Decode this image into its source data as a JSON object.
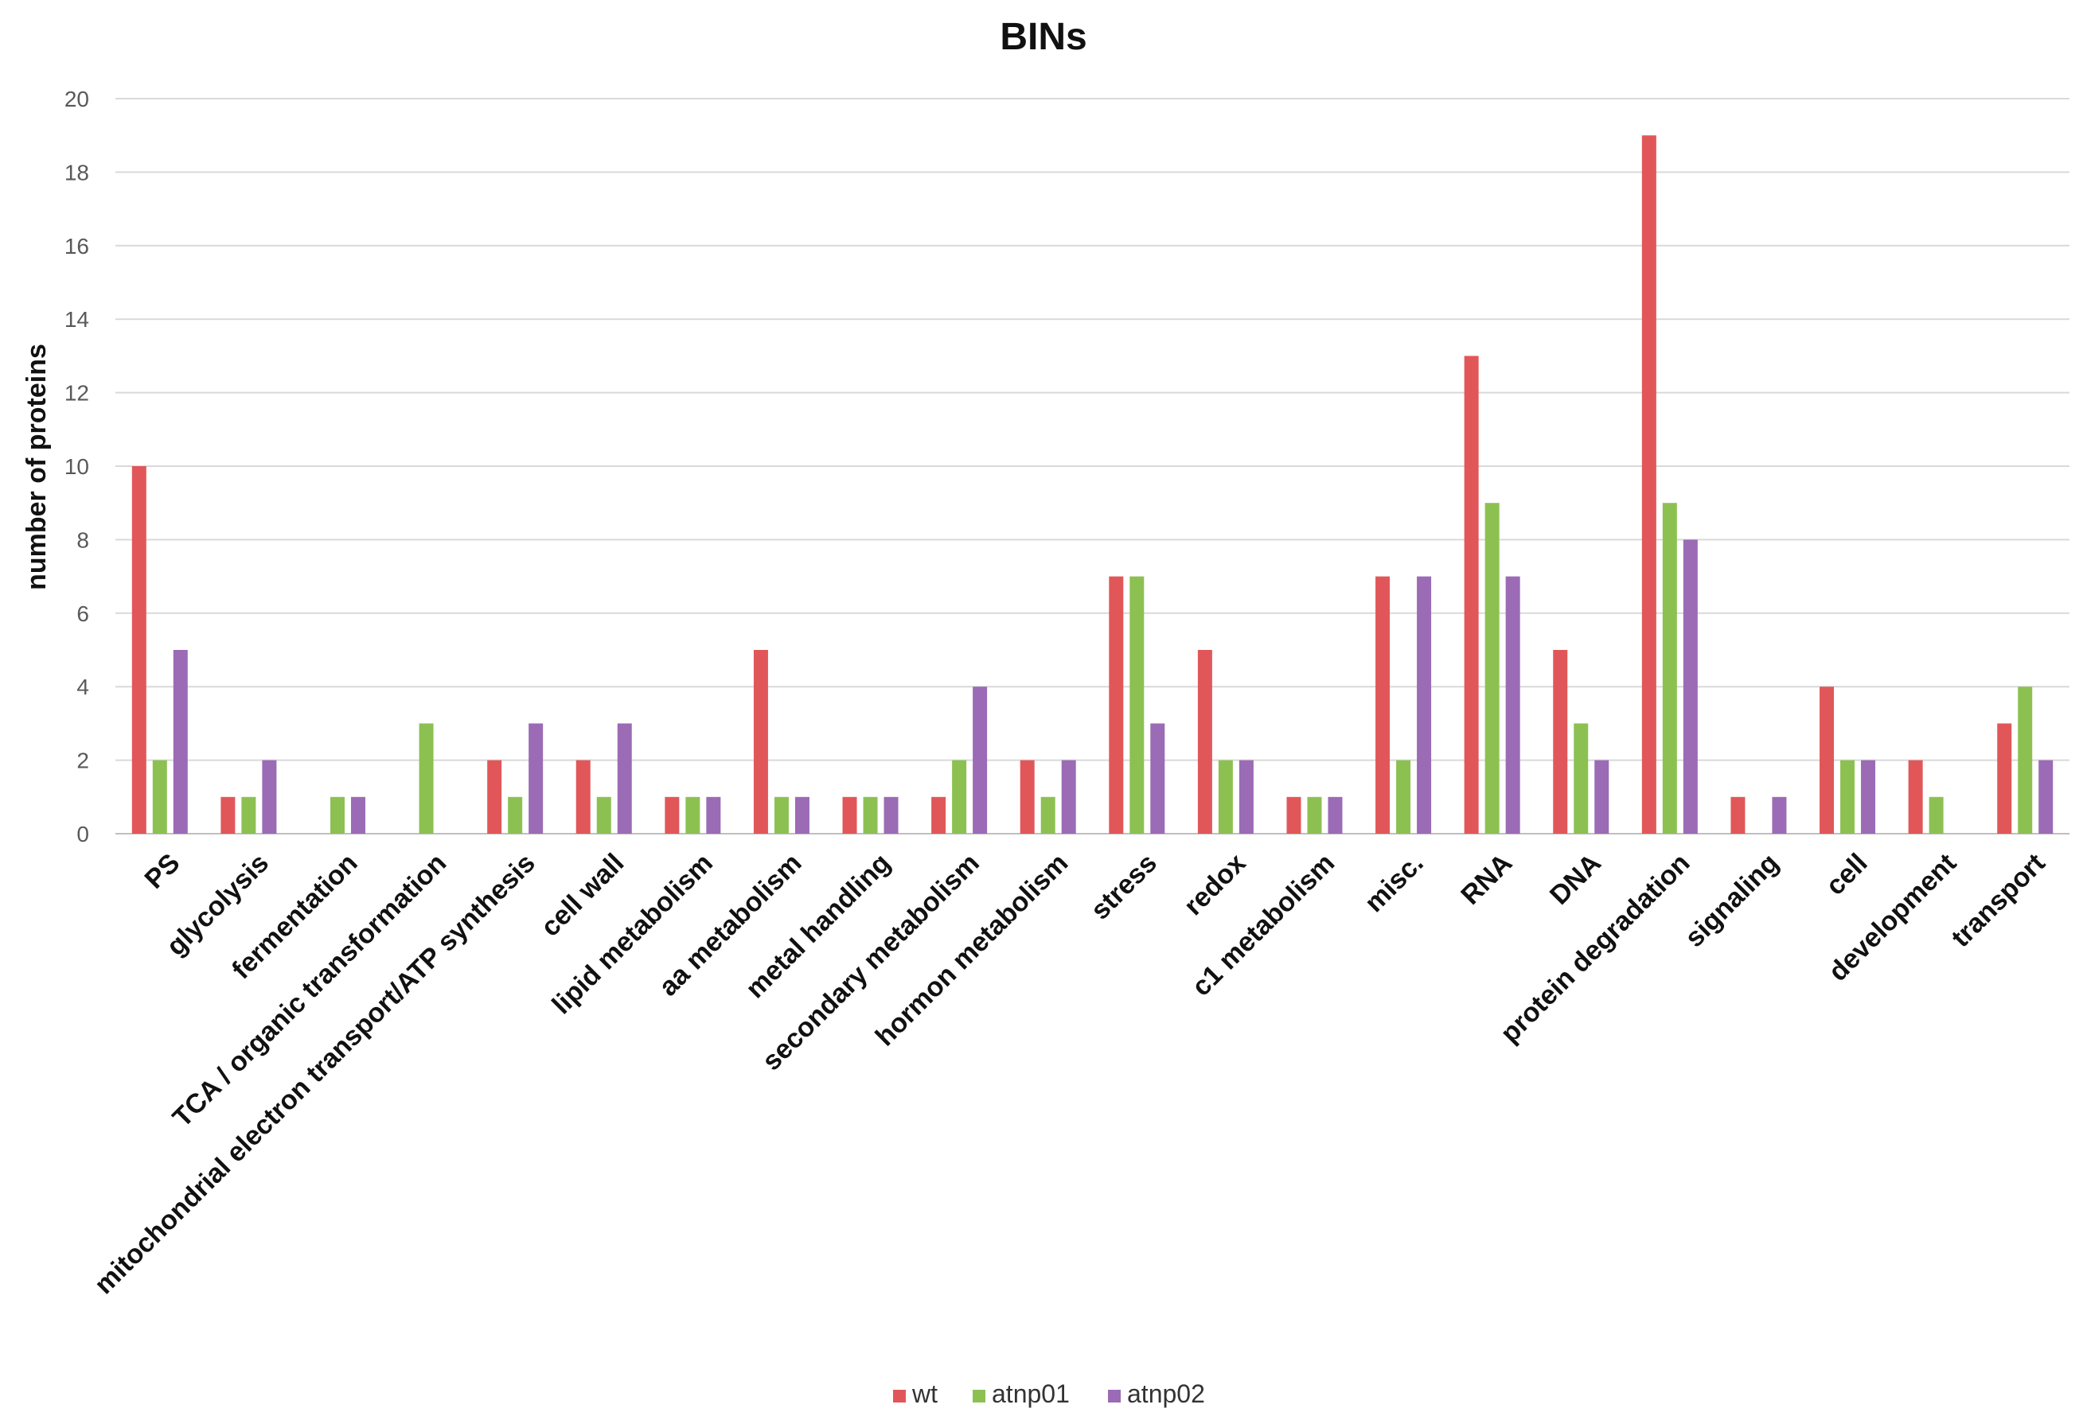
{
  "chart_data": {
    "type": "bar",
    "title": "BINs",
    "xlabel": "",
    "ylabel": "number of proteins",
    "ylim": [
      0,
      20
    ],
    "yticks": [
      0,
      2,
      4,
      6,
      8,
      10,
      12,
      14,
      16,
      18,
      20
    ],
    "grid": true,
    "legend_position": "bottom",
    "categories": [
      "PS",
      "glycolysis",
      "fermentation",
      "TCA / organic transformation",
      "mitochondrial electron transport/ATP synthesis",
      "cell wall",
      "lipid metabolism",
      "aa metabolism",
      "metal handling",
      "secondary metabolism",
      "hormon metabolism",
      "stress",
      "redox",
      "c1 metabolism",
      "misc.",
      "RNA",
      "DNA",
      "protein degradation",
      "signaling",
      "cell",
      "development",
      "transport"
    ],
    "series": [
      {
        "name": "wt",
        "color": "#e15759",
        "values": [
          10,
          1,
          0,
          0,
          2,
          2,
          1,
          5,
          1,
          1,
          2,
          7,
          5,
          1,
          7,
          13,
          5,
          19,
          1,
          4,
          2,
          3
        ]
      },
      {
        "name": "atnp01",
        "color": "#8cc152",
        "values": [
          2,
          1,
          1,
          3,
          1,
          1,
          1,
          1,
          1,
          2,
          1,
          7,
          2,
          1,
          2,
          9,
          3,
          9,
          0,
          2,
          1,
          4
        ]
      },
      {
        "name": "atnp02",
        "color": "#9b6bb5",
        "values": [
          5,
          2,
          1,
          0,
          3,
          3,
          1,
          1,
          1,
          4,
          2,
          3,
          2,
          1,
          7,
          7,
          2,
          8,
          1,
          2,
          0,
          2
        ]
      }
    ]
  }
}
